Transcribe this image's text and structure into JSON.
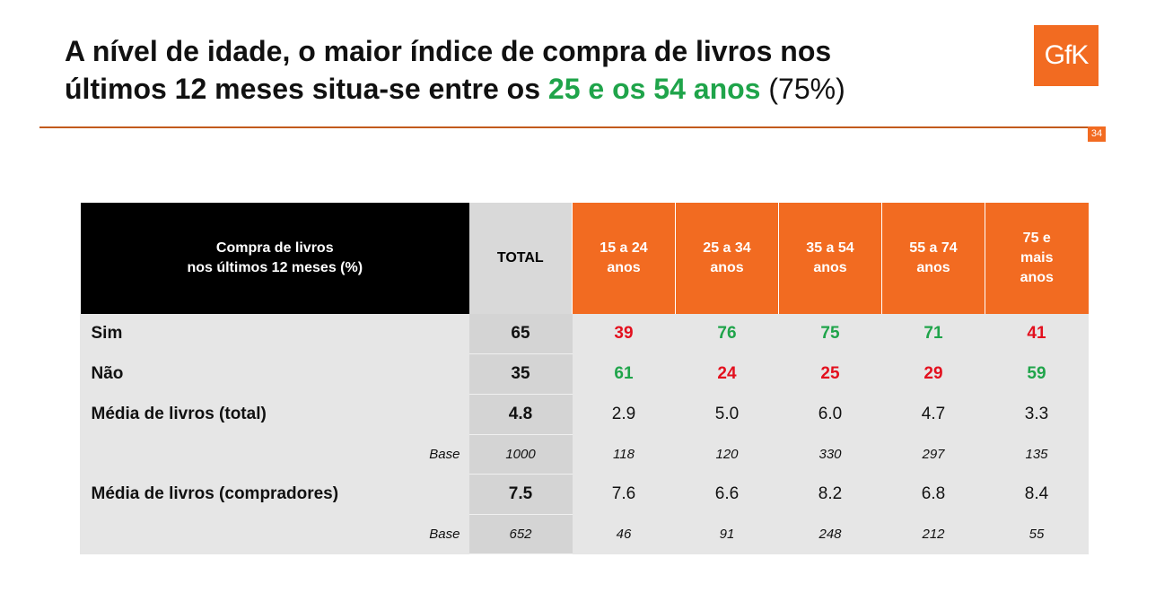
{
  "title": {
    "line1": "A nível de idade, o maior índice de compra de livros nos",
    "line2_start": "últimos 12 meses situa-se entre os",
    "line2_highlight": "25 e os 54 anos",
    "line2_pct": "(75%)"
  },
  "logo_text": "GfK",
  "page_number": "34",
  "colors": {
    "orange": "#f26b21",
    "green": "#1fa44a",
    "red": "#e3101e"
  },
  "table": {
    "question_line1": "Compra de livros",
    "question_line2": "nos últimos 12 meses (%)",
    "total_header": "TOTAL",
    "age_headers": [
      [
        "15 a 24",
        "anos"
      ],
      [
        "25 a 34",
        "anos"
      ],
      [
        "35 a 54",
        "anos"
      ],
      [
        "55 a 74",
        "anos"
      ],
      [
        "75 e",
        "mais",
        "anos"
      ]
    ],
    "rows": [
      {
        "label": "Sim",
        "total": "65",
        "values": [
          "39",
          "76",
          "75",
          "71",
          "41"
        ],
        "styles": [
          "r",
          "g",
          "g",
          "g",
          "r"
        ]
      },
      {
        "label": "Não",
        "total": "35",
        "values": [
          "61",
          "24",
          "25",
          "29",
          "59"
        ],
        "styles": [
          "g",
          "r",
          "r",
          "r",
          "g"
        ]
      },
      {
        "label": "Média de livros (total)",
        "total": "4.8",
        "values": [
          "2.9",
          "5.0",
          "6.0",
          "4.7",
          "3.3"
        ],
        "styles": [
          "",
          "",
          "",
          "",
          ""
        ]
      },
      {
        "label": "Base",
        "base": true,
        "total": "1000",
        "values": [
          "118",
          "120",
          "330",
          "297",
          "135"
        ]
      },
      {
        "label": "Média de livros (compradores)",
        "total": "7.5",
        "values": [
          "7.6",
          "6.6",
          "8.2",
          "6.8",
          "8.4"
        ],
        "styles": [
          "",
          "",
          "",
          "",
          ""
        ]
      },
      {
        "label": "Base",
        "base": true,
        "total": "652",
        "values": [
          "46",
          "91",
          "248",
          "212",
          "55"
        ]
      }
    ]
  }
}
